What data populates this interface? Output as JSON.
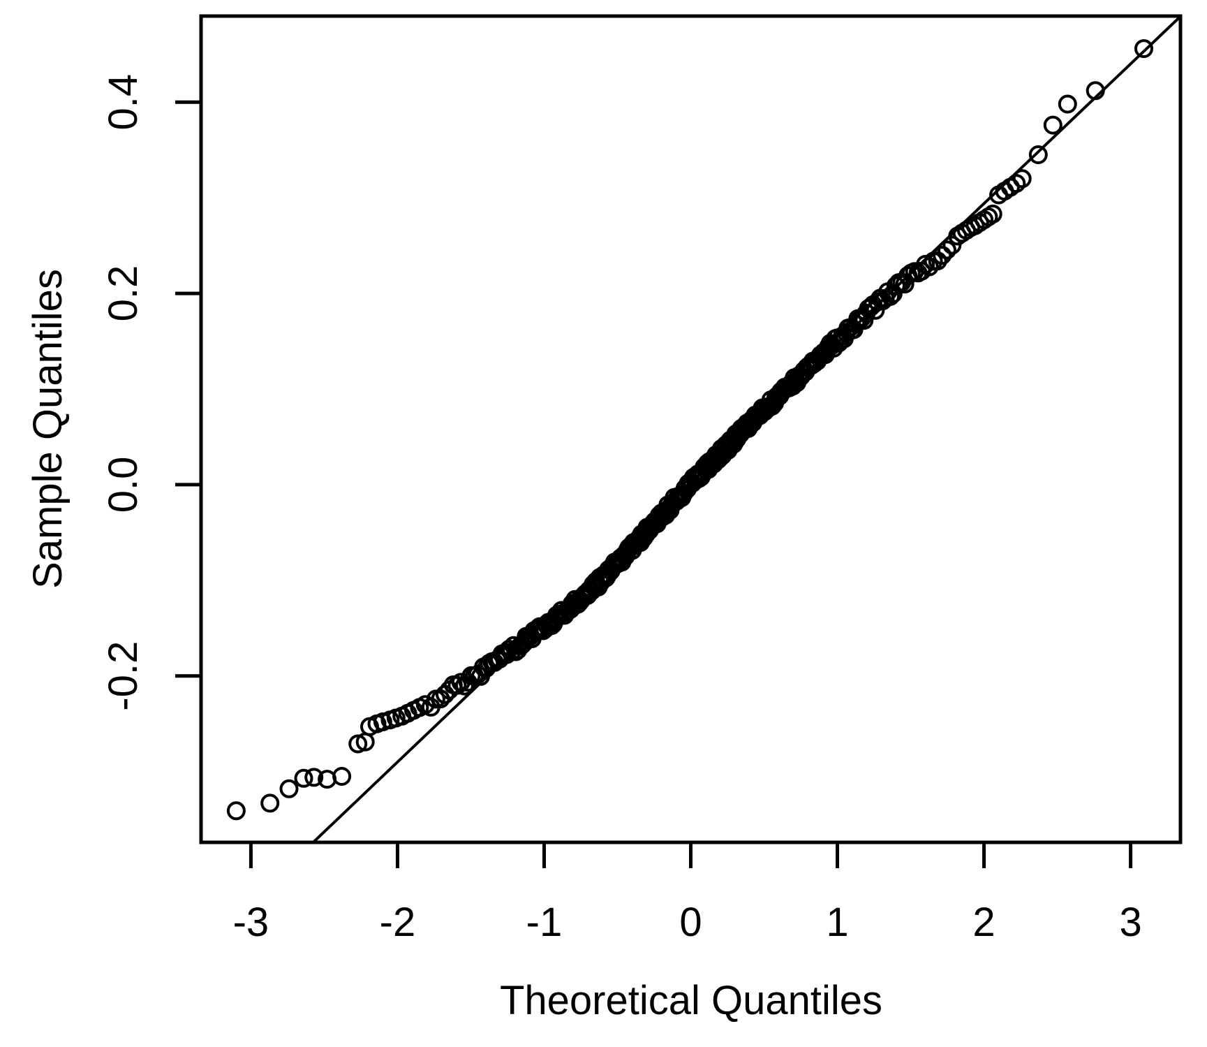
{
  "figure": {
    "background": "#ffffff",
    "foreground": "#000000"
  },
  "chart_data": {
    "type": "scatter",
    "subtype": "normal-qq-plot",
    "title": "",
    "xlabel": "Theoretical Quantiles",
    "ylabel": "Sample Quantiles",
    "xlim": [
      -3.34,
      3.34
    ],
    "ylim": [
      -0.374,
      0.49
    ],
    "x_ticks": [
      -3,
      -2,
      -1,
      0,
      1,
      2,
      3
    ],
    "x_tick_labels": [
      "-3",
      "-2",
      "-1",
      "0",
      "1",
      "2",
      "3"
    ],
    "y_ticks": [
      -0.2,
      0.0,
      0.2,
      0.4
    ],
    "y_tick_labels": [
      "-0.2",
      "0.0",
      "0.2",
      "0.4"
    ],
    "grid": false,
    "legend": null,
    "reference_line": {
      "slope": 0.146,
      "intercept": 0.002
    },
    "marker": {
      "shape": "open-circle",
      "radius_px": 11.5,
      "stroke_px": 4
    },
    "points_lower_tail": [
      [
        -3.1,
        -0.341
      ],
      [
        -2.87,
        -0.333
      ],
      [
        -2.74,
        -0.318
      ],
      [
        -2.64,
        -0.307
      ],
      [
        -2.57,
        -0.306
      ],
      [
        -2.48,
        -0.308
      ],
      [
        -2.38,
        -0.305
      ],
      [
        -2.27,
        -0.271
      ],
      [
        -2.22,
        -0.269
      ],
      [
        -2.19,
        -0.253
      ],
      [
        -2.14,
        -0.25
      ],
      [
        -2.1,
        -0.248
      ],
      [
        -2.05,
        -0.246
      ],
      [
        -2.01,
        -0.244
      ],
      [
        -1.97,
        -0.242
      ],
      [
        -1.93,
        -0.239
      ],
      [
        -1.89,
        -0.236
      ],
      [
        -1.85,
        -0.233
      ],
      [
        -1.81,
        -0.23
      ]
    ],
    "points_upper_tail": [
      [
        1.82,
        0.26
      ],
      [
        1.85,
        0.263
      ],
      [
        1.88,
        0.266
      ],
      [
        1.91,
        0.269
      ],
      [
        1.94,
        0.271
      ],
      [
        1.97,
        0.274
      ],
      [
        2.0,
        0.277
      ],
      [
        2.03,
        0.28
      ],
      [
        2.06,
        0.283
      ],
      [
        2.1,
        0.303
      ],
      [
        2.14,
        0.307
      ],
      [
        2.18,
        0.311
      ],
      [
        2.22,
        0.315
      ],
      [
        2.26,
        0.32
      ],
      [
        2.37,
        0.345
      ],
      [
        2.47,
        0.376
      ],
      [
        2.57,
        0.398
      ],
      [
        2.76,
        0.412
      ],
      [
        3.09,
        0.456
      ]
    ],
    "dense_band": {
      "n": 320,
      "q_range": [
        -1.79,
        1.8
      ],
      "jitter": 0.0045,
      "deviation_knots": [
        [
          -1.8,
          0.03
        ],
        [
          -1.6,
          0.02
        ],
        [
          -1.45,
          0.012
        ],
        [
          -1.3,
          0.006
        ],
        [
          -1.15,
          0.0
        ],
        [
          -0.9,
          -0.008
        ],
        [
          -0.66,
          -0.013
        ],
        [
          -0.4,
          -0.009
        ],
        [
          -0.2,
          -0.005
        ],
        [
          0.0,
          -0.001
        ],
        [
          0.2,
          0.001
        ],
        [
          0.5,
          0.003
        ],
        [
          0.8,
          0.003
        ],
        [
          1.1,
          0.002
        ],
        [
          1.35,
          0.0
        ],
        [
          1.55,
          -0.006
        ],
        [
          1.7,
          -0.011
        ],
        [
          1.8,
          -0.016
        ]
      ]
    }
  }
}
